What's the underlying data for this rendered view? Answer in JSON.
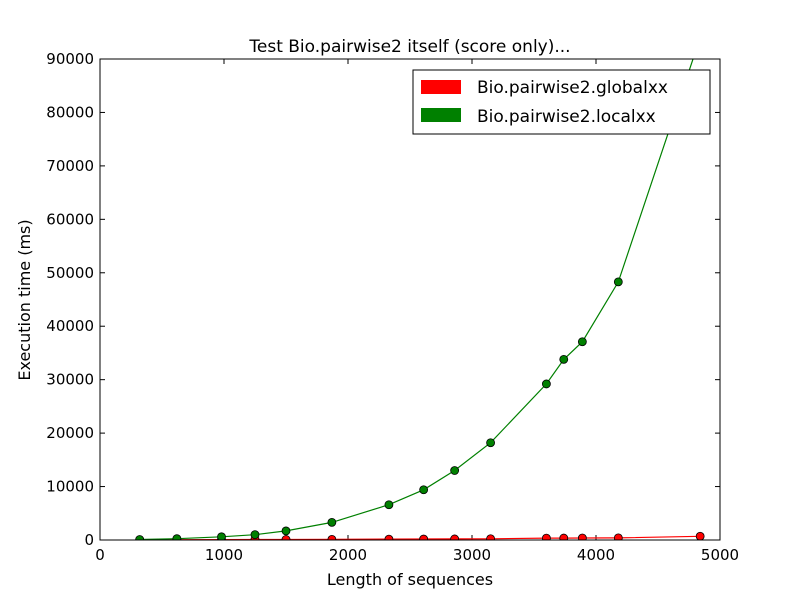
{
  "chart_data": {
    "type": "line",
    "title": "Test Bio.pairwise2 itself (score only)...",
    "xlabel": "Length of sequences",
    "ylabel": "Execution time (ms)",
    "xlim": [
      0,
      5000
    ],
    "ylim": [
      0,
      90000
    ],
    "xticks": [
      0,
      1000,
      2000,
      3000,
      4000,
      5000
    ],
    "yticks": [
      0,
      10000,
      20000,
      30000,
      40000,
      50000,
      60000,
      70000,
      80000,
      90000
    ],
    "xtick_labels": [
      "0",
      "1000",
      "2000",
      "3000",
      "4000",
      "5000"
    ],
    "ytick_labels": [
      "0",
      "10000",
      "20000",
      "30000",
      "40000",
      "50000",
      "60000",
      "70000",
      "80000",
      "90000"
    ],
    "grid": false,
    "legend_position": "top-right",
    "series": [
      {
        "name": "Bio.pairwise2.globalxx",
        "color": "#ff0000",
        "points": [
          [
            320,
            30
          ],
          [
            620,
            60
          ],
          [
            980,
            80
          ],
          [
            1250,
            90
          ],
          [
            1500,
            100
          ],
          [
            1870,
            110
          ],
          [
            2330,
            160
          ],
          [
            2610,
            180
          ],
          [
            2860,
            200
          ],
          [
            3150,
            230
          ],
          [
            3600,
            350
          ],
          [
            3740,
            360
          ],
          [
            3890,
            370
          ],
          [
            4180,
            400
          ],
          [
            4840,
            700
          ]
        ]
      },
      {
        "name": "Bio.pairwise2.localxx",
        "color": "#008000",
        "points": [
          [
            320,
            100
          ],
          [
            620,
            250
          ],
          [
            980,
            600
          ],
          [
            1250,
            1000
          ],
          [
            1500,
            1700
          ],
          [
            1870,
            3300
          ],
          [
            2330,
            6600
          ],
          [
            2610,
            9400
          ],
          [
            2860,
            13000
          ],
          [
            3150,
            18200
          ],
          [
            3600,
            29200
          ],
          [
            3740,
            33800
          ],
          [
            3890,
            37100
          ],
          [
            4180,
            48300
          ],
          [
            4840,
            94000
          ]
        ]
      }
    ]
  }
}
